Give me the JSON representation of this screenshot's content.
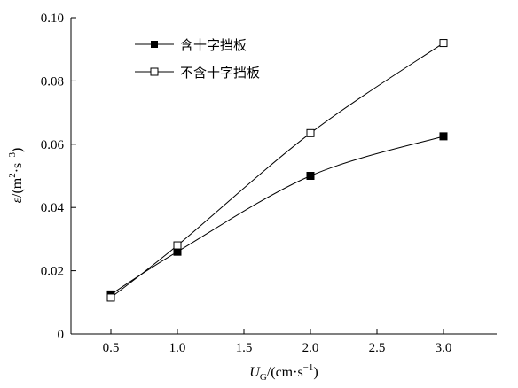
{
  "chart_data": {
    "type": "line",
    "x": [
      0.5,
      1.0,
      2.0,
      3.0
    ],
    "xlim": [
      0.2,
      3.4
    ],
    "ylim": [
      0,
      0.1
    ],
    "xticks": [
      "0.5",
      "1.0",
      "1.5",
      "2.0",
      "2.5",
      "3.0"
    ],
    "yticks": [
      "0",
      "0.02",
      "0.04",
      "0.06",
      "0.08",
      "0.10"
    ],
    "xlabel": {
      "main": "U",
      "sub": "G",
      "rest": "/(cm·s",
      "sup": "−1",
      "close": ")"
    },
    "ylabel": {
      "main": "ε",
      "rest": "/(m",
      "sup1": "2",
      "mid": "·s",
      "sup2": "−3",
      "close": ")"
    },
    "legend_position": "top-left",
    "grid": false,
    "series": [
      {
        "name": "含十字挡板",
        "marker": "filled-square",
        "values": [
          0.0125,
          0.026,
          0.05,
          0.0625
        ]
      },
      {
        "name": "不含十字挡板",
        "marker": "open-square",
        "values": [
          0.0115,
          0.028,
          0.0635,
          0.092
        ]
      }
    ]
  }
}
